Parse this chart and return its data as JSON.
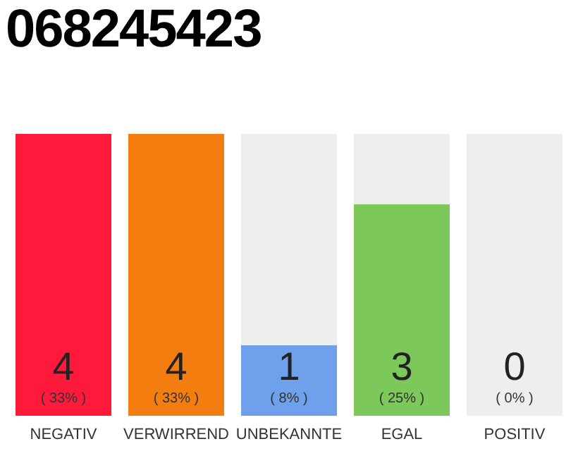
{
  "chart_data": {
    "type": "bar",
    "title": "068245423",
    "categories": [
      "NEGATIV",
      "VERWIRREND",
      "UNBEKANNTE",
      "EGAL",
      "POSITIV"
    ],
    "values": [
      4,
      4,
      1,
      3,
      0
    ],
    "colors": [
      "#ff1a3c",
      "#f47d0f",
      "#6ea0ec",
      "#7dc85a",
      "#cccccc"
    ],
    "value_labels": [
      "4\n( 33% )",
      "4\n( 33% )",
      "1\n( 8% )",
      "3\n( 25% )",
      "0\n( 0% )"
    ],
    "ylim": [
      0,
      4
    ],
    "tick_labels": "x"
  }
}
